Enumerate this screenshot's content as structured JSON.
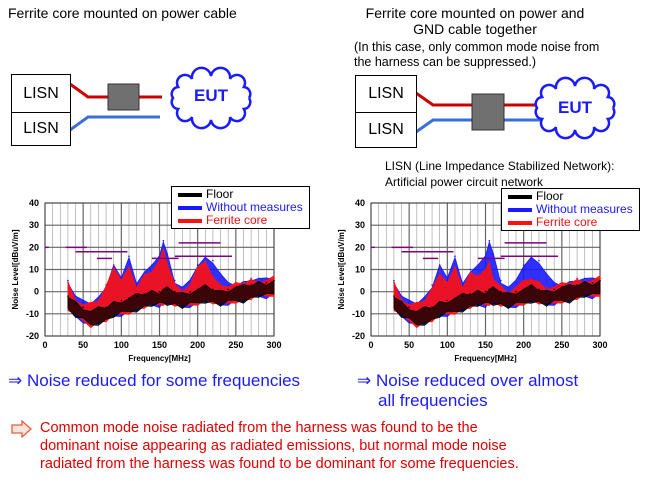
{
  "left": {
    "title": "Ferrite core mounted on power cable",
    "lisn1": "LISN",
    "lisn2": "LISN",
    "eut": "EUT",
    "result": "⇒ Noise reduced for some frequencies"
  },
  "right": {
    "title1": "Ferrite core mounted on power and",
    "title2": "GND cable together",
    "note1": "(In this case, only common mode noise from",
    "note2": "the harness can be suppressed.)",
    "lisn1": "LISN",
    "lisn2": "LISN",
    "eut": "EUT",
    "result1": "⇒ Noise reduced over almost",
    "result2": "all frequencies"
  },
  "lisn_def": {
    "line1": "LISN (Line Impedance Stabilized Network):",
    "line2": "Artificial power circuit network"
  },
  "conclusion": {
    "icon": "arrow-right-outline-icon",
    "line1": "Common mode noise radiated from the harness was found to be the",
    "line2": "dominant noise appearing as radiated emissions, but normal mode noise",
    "line3": "radiated from the harness was found to be dominant for some frequencies."
  },
  "colors": {
    "power_line": "#cc0000",
    "gnd_line": "#3a6fd8",
    "ferrite": "#707070",
    "eut": "#1a1aff",
    "limit": "#800080"
  },
  "chart_data": [
    {
      "type": "area",
      "xlabel": "Frequency[MHz]",
      "ylabel": "Noise Level[dBuV/m]",
      "xlim": [
        0,
        300
      ],
      "ylim": [
        -20,
        40
      ],
      "xticks": [
        "0",
        "50",
        "100",
        "150",
        "200",
        "250",
        "300"
      ],
      "yticks": [
        "-20",
        "-10",
        "0",
        "10",
        "20",
        "30",
        "40"
      ],
      "grid": true,
      "legend_placement": "top-right",
      "x": [
        30,
        40,
        50,
        60,
        70,
        80,
        90,
        100,
        110,
        120,
        130,
        140,
        150,
        155,
        160,
        170,
        180,
        190,
        200,
        210,
        220,
        230,
        240,
        250,
        260,
        270,
        280,
        290,
        300
      ],
      "series": [
        {
          "name": "Without measures",
          "color": "#1a1aff",
          "values": [
            5,
            -2,
            -5,
            -5,
            -3,
            3,
            12,
            5,
            16,
            3,
            10,
            12,
            15,
            23,
            17,
            5,
            2,
            4,
            12,
            15,
            14,
            8,
            3,
            3,
            4,
            6,
            6,
            5,
            6
          ]
        },
        {
          "name": "Ferrite core",
          "color": "#ff1010",
          "values": [
            4,
            -3,
            -6,
            -6,
            -4,
            2,
            12,
            5,
            10,
            2,
            7,
            10,
            14,
            18,
            13,
            3,
            1,
            3,
            10,
            14,
            6,
            4,
            2,
            3,
            4,
            5,
            5,
            5,
            6
          ]
        },
        {
          "name": "Floor",
          "color": "#000000",
          "values": [
            -2,
            -5,
            -7,
            -9,
            -8,
            -7,
            -5,
            -4,
            -3,
            -2,
            -1,
            0,
            0,
            1,
            1,
            0,
            -1,
            0,
            1,
            2,
            1,
            0,
            1,
            2,
            2,
            3,
            4,
            4,
            5
          ]
        }
      ],
      "limits": [
        [
          0,
          5,
          20
        ],
        [
          27,
          55,
          20
        ],
        [
          40,
          108,
          18
        ],
        [
          68,
          88,
          15
        ],
        [
          140,
          175,
          15
        ],
        [
          170,
          245,
          16
        ],
        [
          175,
          230,
          22
        ]
      ]
    },
    {
      "type": "area",
      "xlabel": "Frequency[MHz]",
      "ylabel": "Noise Level[dBuV/m]",
      "xlim": [
        0,
        300
      ],
      "ylim": [
        -20,
        40
      ],
      "xticks": [
        "0",
        "50",
        "100",
        "150",
        "200",
        "250",
        "300"
      ],
      "yticks": [
        "-20",
        "-10",
        "0",
        "10",
        "20",
        "30",
        "40"
      ],
      "grid": true,
      "legend_placement": "top-right",
      "x": [
        30,
        40,
        50,
        60,
        70,
        80,
        90,
        100,
        110,
        120,
        130,
        140,
        150,
        155,
        160,
        170,
        180,
        190,
        200,
        210,
        220,
        230,
        240,
        250,
        260,
        270,
        280,
        290,
        300
      ],
      "series": [
        {
          "name": "Without measures",
          "color": "#1a1aff",
          "values": [
            5,
            -2,
            -5,
            -5,
            -3,
            3,
            12,
            5,
            16,
            3,
            10,
            12,
            15,
            23,
            17,
            5,
            2,
            4,
            12,
            15,
            14,
            8,
            3,
            3,
            4,
            6,
            6,
            5,
            6
          ]
        },
        {
          "name": "Ferrite core",
          "color": "#ff1010",
          "values": [
            4,
            -3,
            -6,
            -6,
            -4,
            1,
            9,
            4,
            10,
            2,
            8,
            8,
            10,
            12,
            6,
            2,
            0,
            2,
            4,
            6,
            4,
            2,
            2,
            3,
            4,
            5,
            5,
            5,
            6
          ]
        },
        {
          "name": "Floor",
          "color": "#000000",
          "values": [
            -2,
            -5,
            -7,
            -9,
            -8,
            -7,
            -5,
            -4,
            -3,
            -2,
            -1,
            0,
            0,
            1,
            1,
            0,
            -1,
            0,
            1,
            2,
            1,
            0,
            1,
            2,
            2,
            3,
            4,
            4,
            5
          ]
        }
      ],
      "limits": [
        [
          0,
          5,
          20
        ],
        [
          27,
          55,
          20
        ],
        [
          40,
          108,
          18
        ],
        [
          68,
          88,
          15
        ],
        [
          140,
          175,
          15
        ],
        [
          170,
          245,
          16
        ],
        [
          175,
          230,
          22
        ]
      ]
    }
  ]
}
